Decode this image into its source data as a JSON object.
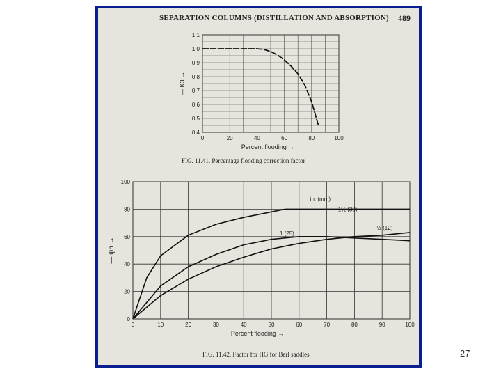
{
  "page": {
    "header": "SEPARATION COLUMNS (DISTILLATION AND ABSORPTION)",
    "page_number": "489",
    "slide_number": "27"
  },
  "fig1": {
    "caption": "FIG. 11.41. Percentage flooding correction factor",
    "xlabel": "Percent flooding",
    "ylabel": "K3",
    "x_ticks": [
      "0",
      "20",
      "40",
      "60",
      "80",
      "100"
    ],
    "y_ticks": [
      "0.4",
      "0.5",
      "0.6",
      "0.7",
      "0.8",
      "0.9",
      "1.0",
      "1.1"
    ]
  },
  "fig2": {
    "caption": "FIG. 11.42. Factor for HG for Berl saddles",
    "xlabel": "Percent flooding",
    "ylabel": "ψh",
    "unit_label": "in. (mm)",
    "x_ticks": [
      "0",
      "10",
      "20",
      "30",
      "40",
      "50",
      "60",
      "70",
      "80",
      "90",
      "100"
    ],
    "y_ticks": [
      "0",
      "20",
      "40",
      "60",
      "80",
      "100"
    ],
    "curve_labels": [
      "1½ (38)",
      "1 (25)",
      "½ (12)"
    ]
  },
  "chart_data": [
    {
      "type": "line",
      "title": "FIG. 11.41. Percentage flooding correction factor",
      "xlabel": "Percent flooding",
      "ylabel": "K3",
      "xlim": [
        0,
        100
      ],
      "ylim": [
        0.4,
        1.1
      ],
      "grid": true,
      "series": [
        {
          "x": [
            0,
            20,
            40,
            45,
            50,
            55,
            60,
            65,
            70,
            75,
            80,
            85
          ],
          "y": [
            1.0,
            1.0,
            1.0,
            0.995,
            0.98,
            0.955,
            0.92,
            0.875,
            0.82,
            0.74,
            0.62,
            0.45
          ]
        }
      ]
    },
    {
      "type": "line",
      "title": "FIG. 11.42. Factor for HG for Berl saddles",
      "xlabel": "Percent flooding",
      "ylabel": "ψh",
      "xlim": [
        0,
        100
      ],
      "ylim": [
        0,
        100
      ],
      "grid": true,
      "series": [
        {
          "name": "1½ (38)",
          "x": [
            0,
            5,
            10,
            20,
            30,
            40,
            50,
            55,
            60,
            65,
            70,
            80,
            90,
            100
          ],
          "y": [
            0,
            30,
            46,
            61,
            69,
            74,
            78,
            80,
            80,
            80,
            80,
            80,
            80,
            80
          ]
        },
        {
          "name": "1 (25)",
          "x": [
            0,
            10,
            20,
            30,
            40,
            50,
            60,
            70,
            80,
            90,
            100
          ],
          "y": [
            0,
            24,
            38,
            47,
            54,
            58,
            60,
            60,
            59,
            58,
            57
          ]
        },
        {
          "name": "½ (12)",
          "x": [
            0,
            10,
            20,
            30,
            40,
            50,
            60,
            70,
            80,
            90,
            100
          ],
          "y": [
            0,
            17,
            29,
            38,
            45,
            51,
            55,
            58,
            60,
            61,
            63
          ]
        }
      ]
    }
  ]
}
